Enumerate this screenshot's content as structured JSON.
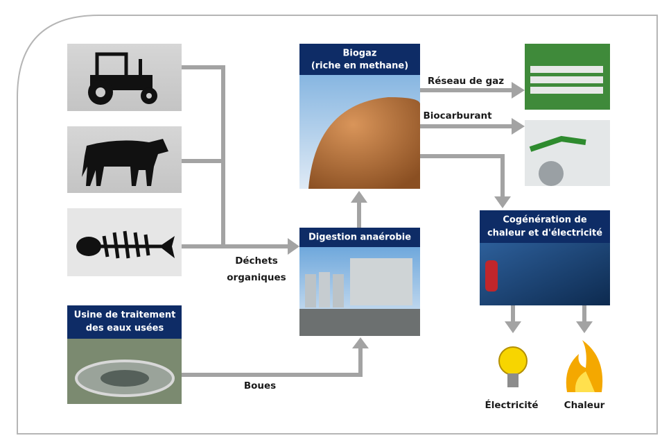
{
  "boxes": {
    "biogas": [
      "Biogaz",
      "(riche en methane)"
    ],
    "digestion": [
      "Digestion anaérobie"
    ],
    "cogeneration": [
      "Cogénération de",
      "chaleur et d'électricité"
    ],
    "wastewater": [
      "Usine de traitement",
      "des eaux usées"
    ]
  },
  "edges": {
    "gas_network": "Réseau de gaz",
    "biofuel": "Biocarburant",
    "organic_waste": [
      "Déchets",
      "organiques"
    ],
    "sludge": "Boues"
  },
  "outputs": {
    "electricity": "Électricité",
    "heat": "Chaleur"
  }
}
